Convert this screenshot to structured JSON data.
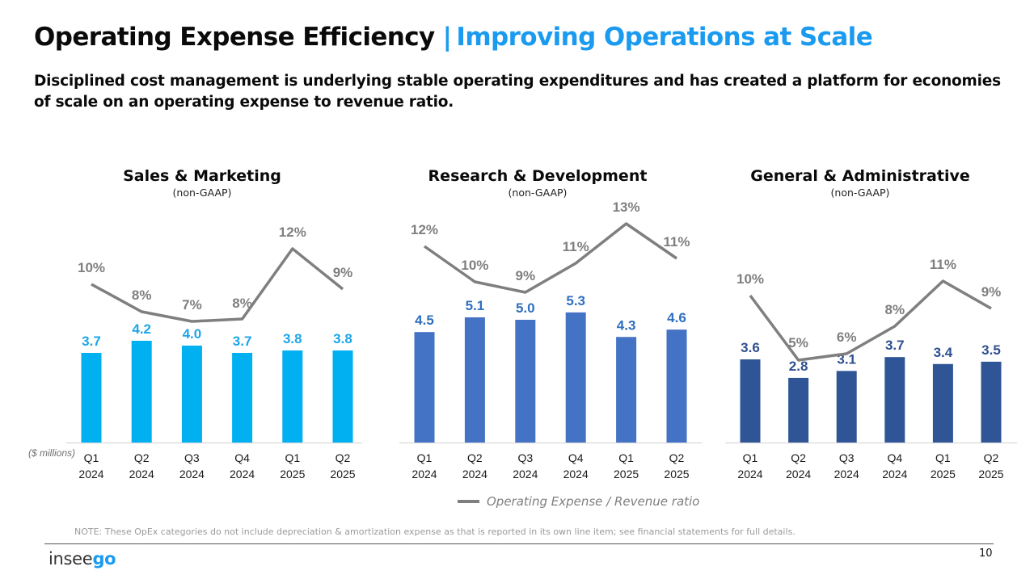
{
  "header": {
    "title": "Operating Expense Efficiency",
    "separator": "|",
    "title_accent": "Improving Operations at Scale",
    "subtitle": "Disciplined cost management is underlying stable operating expenditures and has created a platform for economies of scale on an operating expense to revenue ratio."
  },
  "colors": {
    "accent": "#1a9bf0",
    "sales_marketing_bar": "#00b0f0",
    "research_development_bar": "#4472c4",
    "general_admin_bar": "#2f5597",
    "ratio_line": "#7f7f7f"
  },
  "unit_label": "($ millions)",
  "legend": {
    "label": "Operating Expense / Revenue ratio"
  },
  "note": "NOTE: These OpEx categories do not include depreciation & amortization expense as that is reported in its own line item; see financial statements for full details.",
  "footer": {
    "logo_prefix": "insee",
    "logo_suffix": "go",
    "page_number": "10"
  },
  "chart_data": [
    {
      "type": "bar",
      "title": "Sales & Marketing",
      "subtitle": "(non-GAAP)",
      "categories": [
        [
          "Q1",
          "2024"
        ],
        [
          "Q2",
          "2024"
        ],
        [
          "Q3",
          "2024"
        ],
        [
          "Q4",
          "2024"
        ],
        [
          "Q1",
          "2025"
        ],
        [
          "Q2",
          "2025"
        ]
      ],
      "series": [
        {
          "name": "Operating Expense ($ millions)",
          "kind": "bar",
          "values": [
            3.7,
            4.2,
            4.0,
            3.7,
            3.8,
            3.8
          ],
          "labels": [
            "3.7",
            "4.2",
            "4.0",
            "3.7",
            "3.8",
            "3.8"
          ]
        },
        {
          "name": "Operating Expense / Revenue ratio",
          "kind": "line",
          "values": [
            10,
            8,
            7,
            8,
            12,
            9
          ],
          "labels": [
            "10%",
            "8%",
            "7%",
            "8%",
            "12%",
            "9%"
          ]
        }
      ],
      "ylabel": "($ millions)",
      "grid": false
    },
    {
      "type": "bar",
      "title": "Research & Development",
      "subtitle": "(non-GAAP)",
      "categories": [
        [
          "Q1",
          "2024"
        ],
        [
          "Q2",
          "2024"
        ],
        [
          "Q3",
          "2024"
        ],
        [
          "Q4",
          "2024"
        ],
        [
          "Q1",
          "2025"
        ],
        [
          "Q2",
          "2025"
        ]
      ],
      "series": [
        {
          "name": "Operating Expense ($ millions)",
          "kind": "bar",
          "values": [
            4.5,
            5.1,
            5.0,
            5.3,
            4.3,
            4.6
          ],
          "labels": [
            "4.5",
            "5.1",
            "5.0",
            "5.3",
            "4.3",
            "4.6"
          ]
        },
        {
          "name": "Operating Expense / Revenue ratio",
          "kind": "line",
          "values": [
            12,
            10,
            9,
            11,
            13,
            11
          ],
          "labels": [
            "12%",
            "10%",
            "9%",
            "11%",
            "13%",
            "11%"
          ]
        }
      ],
      "legend_position": "bottom",
      "grid": false
    },
    {
      "type": "bar",
      "title": "General & Administrative",
      "subtitle": "(non-GAAP)",
      "categories": [
        [
          "Q1",
          "2024"
        ],
        [
          "Q2",
          "2024"
        ],
        [
          "Q3",
          "2024"
        ],
        [
          "Q4",
          "2024"
        ],
        [
          "Q1",
          "2025"
        ],
        [
          "Q2",
          "2025"
        ]
      ],
      "series": [
        {
          "name": "Operating Expense ($ millions)",
          "kind": "bar",
          "values": [
            3.6,
            2.8,
            3.1,
            3.7,
            3.4,
            3.5
          ],
          "labels": [
            "3.6",
            "2.8",
            "3.1",
            "3.7",
            "3.4",
            "3.5"
          ]
        },
        {
          "name": "Operating Expense / Revenue ratio",
          "kind": "line",
          "values": [
            10,
            5,
            6,
            8,
            11,
            9
          ],
          "labels": [
            "10%",
            "5%",
            "6%",
            "8%",
            "11%",
            "9%"
          ]
        }
      ],
      "grid": false
    }
  ]
}
